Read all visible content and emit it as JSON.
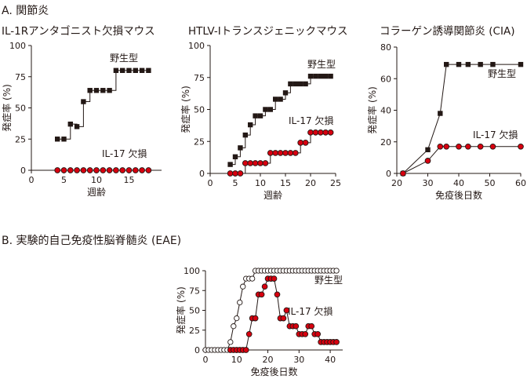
{
  "section_a": "A. 関節炎",
  "section_b": "B. 実験的自己免疫性脳脊髄炎 (EAE)",
  "colors": {
    "wild_type": "#231815",
    "knockout": "#d7000f",
    "open_marker": "#ffffff",
    "axis": "#231815"
  },
  "chart_data": [
    {
      "type": "line",
      "title": "IL-1Rアンタゴニスト欠損マウス",
      "xlabel": "週齢",
      "ylabel": "発症率 (%)",
      "xlim": [
        0,
        20
      ],
      "ylim": [
        0,
        100
      ],
      "xticks": [
        0,
        5,
        10,
        15
      ],
      "yticks": [
        0,
        25,
        50,
        75,
        100
      ],
      "grid": false,
      "series": [
        {
          "name": "野生型",
          "marker": "filled-square",
          "step": true,
          "x": [
            4,
            5,
            6,
            7,
            8,
            9,
            10,
            11,
            12,
            13,
            14,
            15,
            16,
            17,
            18
          ],
          "y": [
            25,
            25,
            37,
            35,
            55,
            64,
            64,
            64,
            64,
            80,
            80,
            80,
            80,
            80,
            80
          ]
        },
        {
          "name": "IL-17 欠損",
          "marker": "red-circle",
          "step": false,
          "x": [
            4,
            5,
            6,
            7,
            8,
            9,
            10,
            11,
            12,
            13,
            14,
            15,
            16,
            17,
            18
          ],
          "y": [
            0,
            0,
            0,
            0,
            0,
            0,
            0,
            0,
            0,
            0,
            0,
            0,
            0,
            0,
            0
          ]
        }
      ]
    },
    {
      "type": "line",
      "title": "HTLV-Iトランスジェニックマウス",
      "xlabel": "週齢",
      "ylabel": "発症率 (%)",
      "xlim": [
        0,
        25
      ],
      "ylim": [
        0,
        100
      ],
      "xticks": [
        0,
        5,
        10,
        15,
        20,
        25
      ],
      "yticks": [
        0,
        25,
        50,
        75,
        100
      ],
      "grid": false,
      "series": [
        {
          "name": "野生型",
          "marker": "filled-square",
          "step": true,
          "x": [
            4,
            5,
            6,
            7,
            8,
            9,
            10,
            11,
            12,
            13,
            14,
            15,
            16,
            17,
            18,
            19,
            20,
            21,
            22,
            23,
            24
          ],
          "y": [
            7,
            13,
            20,
            30,
            38,
            45,
            45,
            50,
            50,
            58,
            58,
            63,
            70,
            70,
            70,
            70,
            76,
            76,
            76,
            76,
            76
          ]
        },
        {
          "name": "IL-17 欠損",
          "marker": "red-circle",
          "step": true,
          "x": [
            4,
            5,
            6,
            7,
            8,
            9,
            10,
            11,
            12,
            13,
            14,
            15,
            16,
            17,
            18,
            19,
            20,
            21,
            22,
            23,
            24
          ],
          "y": [
            0,
            0,
            0,
            8,
            8,
            8,
            8,
            8,
            16,
            16,
            16,
            16,
            16,
            16,
            24,
            24,
            32,
            32,
            32,
            32,
            32
          ]
        }
      ]
    },
    {
      "type": "line",
      "title": "コラーゲン誘導関節炎 (CIA)",
      "xlabel": "免疫後日数",
      "ylabel": "発症率 (%)",
      "xlim": [
        20,
        60
      ],
      "ylim": [
        0,
        80
      ],
      "xticks": [
        20,
        30,
        40,
        50,
        60
      ],
      "yticks": [
        0,
        20,
        40,
        60,
        80
      ],
      "grid": false,
      "series": [
        {
          "name": "野生型",
          "marker": "filled-square",
          "step": false,
          "x": [
            22,
            30,
            34,
            36,
            40,
            43,
            47,
            51,
            60
          ],
          "y": [
            0,
            15,
            38,
            69,
            69,
            69,
            69,
            69,
            69
          ]
        },
        {
          "name": "IL-17 欠損",
          "marker": "red-circle",
          "step": false,
          "x": [
            22,
            30,
            34,
            36,
            40,
            43,
            47,
            51,
            60
          ],
          "y": [
            0,
            8,
            17,
            17,
            17,
            17,
            17,
            17,
            17
          ]
        }
      ]
    },
    {
      "type": "line",
      "xlabel": "免疫後日数",
      "ylabel": "発症率 (%)",
      "xlim": [
        0,
        44
      ],
      "ylim": [
        0,
        100
      ],
      "xticks": [
        0,
        10,
        20,
        30,
        40
      ],
      "yticks": [
        0,
        25,
        50,
        75,
        100
      ],
      "grid": false,
      "series": [
        {
          "name": "野生型",
          "marker": "open-circle",
          "step": false,
          "x": [
            0,
            1,
            2,
            3,
            4,
            5,
            6,
            7,
            8,
            9,
            10,
            11,
            12,
            13,
            14,
            15,
            16,
            17,
            18,
            19,
            20,
            21,
            22,
            23,
            24,
            25,
            26,
            27,
            28,
            29,
            30,
            31,
            32,
            33,
            34,
            35,
            36,
            37,
            38,
            39,
            40,
            41,
            42
          ],
          "y": [
            0,
            0,
            0,
            0,
            0,
            0,
            0,
            0,
            10,
            30,
            40,
            60,
            80,
            90,
            90,
            90,
            100,
            100,
            100,
            100,
            100,
            100,
            100,
            100,
            100,
            100,
            100,
            100,
            100,
            100,
            100,
            100,
            100,
            100,
            100,
            100,
            100,
            100,
            100,
            100,
            100,
            100,
            100
          ]
        },
        {
          "name": "IL-17 欠損",
          "marker": "red-circle",
          "step": false,
          "x": [
            8,
            9,
            10,
            11,
            12,
            13,
            14,
            15,
            16,
            17,
            18,
            19,
            20,
            21,
            22,
            23,
            24,
            25,
            26,
            27,
            28,
            29,
            30,
            31,
            32,
            33,
            34,
            35,
            36,
            37,
            38,
            39,
            40,
            41,
            42
          ],
          "y": [
            0,
            0,
            0,
            0,
            0,
            0,
            20,
            40,
            40,
            70,
            70,
            80,
            90,
            90,
            90,
            70,
            40,
            40,
            50,
            30,
            30,
            30,
            20,
            20,
            20,
            30,
            30,
            20,
            20,
            10,
            10,
            10,
            10,
            10,
            10
          ]
        }
      ]
    }
  ]
}
